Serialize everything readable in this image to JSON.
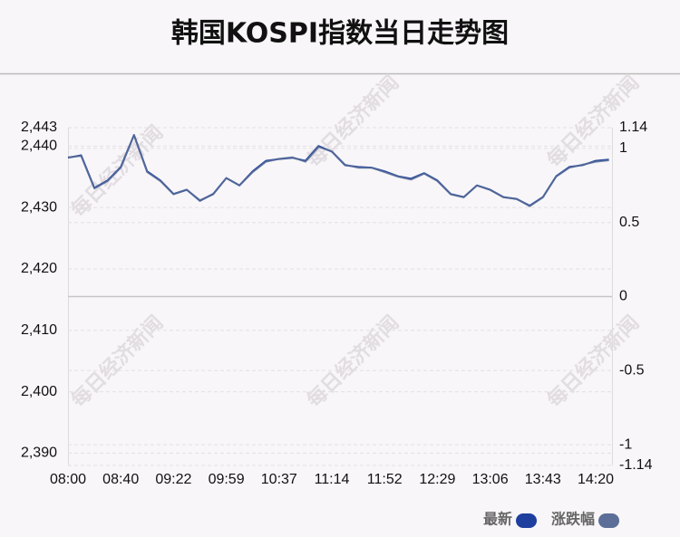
{
  "chart_data": {
    "type": "line",
    "title": "韩国KOSPI指数当日走势图",
    "watermark": "每日经济新闻",
    "categories": [
      "08:00",
      null,
      null,
      null,
      "08:40",
      null,
      null,
      null,
      "09:22",
      null,
      null,
      null,
      "09:59",
      null,
      null,
      null,
      "10:37",
      null,
      null,
      null,
      "11:14",
      null,
      null,
      null,
      "11:52",
      null,
      null,
      null,
      "12:29",
      null,
      null,
      null,
      "13:06",
      null,
      null,
      null,
      "13:43",
      null,
      null,
      null,
      "14:20",
      null
    ],
    "series": [
      {
        "name": "最新",
        "color": "#1f3f9f",
        "axis": "y",
        "values": [
          2438.1,
          2438.5,
          2433.2,
          2434.4,
          2436.6,
          2441.8,
          2435.9,
          2434.4,
          2432.2,
          2432.9,
          2431.1,
          2432.2,
          2434.8,
          2433.6,
          2435.9,
          2437.6,
          2437.9,
          2438.1,
          2437.6,
          2440.0,
          2439.1,
          2436.9,
          2436.6,
          2436.5,
          2435.9,
          2435.1,
          2434.7,
          2435.6,
          2434.4,
          2432.2,
          2431.7,
          2433.6,
          2432.9,
          2431.7,
          2431.4,
          2430.3,
          2431.7,
          2435.1,
          2436.6,
          2436.9,
          2437.6,
          2437.8
        ]
      },
      {
        "name": "涨跌幅",
        "color": "#5b6f98",
        "axis": "y2",
        "values": [
          0.94,
          0.95,
          0.73,
          0.78,
          0.87,
          1.09,
          0.84,
          0.78,
          0.69,
          0.72,
          0.65,
          0.69,
          0.8,
          0.75,
          0.84,
          0.91,
          0.93,
          0.94,
          0.91,
          1.01,
          0.98,
          0.89,
          0.87,
          0.87,
          0.84,
          0.81,
          0.79,
          0.83,
          0.78,
          0.69,
          0.67,
          0.75,
          0.72,
          0.67,
          0.66,
          0.61,
          0.67,
          0.81,
          0.87,
          0.89,
          0.91,
          0.92
        ]
      }
    ],
    "ylim": [
      2388,
      2443
    ],
    "yticks": [
      {
        "value": 2443,
        "label": "2,443"
      },
      {
        "value": 2440,
        "label": "2,440"
      },
      {
        "value": 2430,
        "label": "2,430"
      },
      {
        "value": 2420,
        "label": "2,420"
      },
      {
        "value": 2410,
        "label": "2,410"
      },
      {
        "value": 2400,
        "label": "2,400"
      },
      {
        "value": 2390,
        "label": "2,390"
      }
    ],
    "y2lim": [
      -1.14,
      1.14
    ],
    "y2ticks": [
      1.14,
      1,
      0.5,
      0,
      -0.5,
      -1,
      -1.14
    ],
    "grid": true
  }
}
